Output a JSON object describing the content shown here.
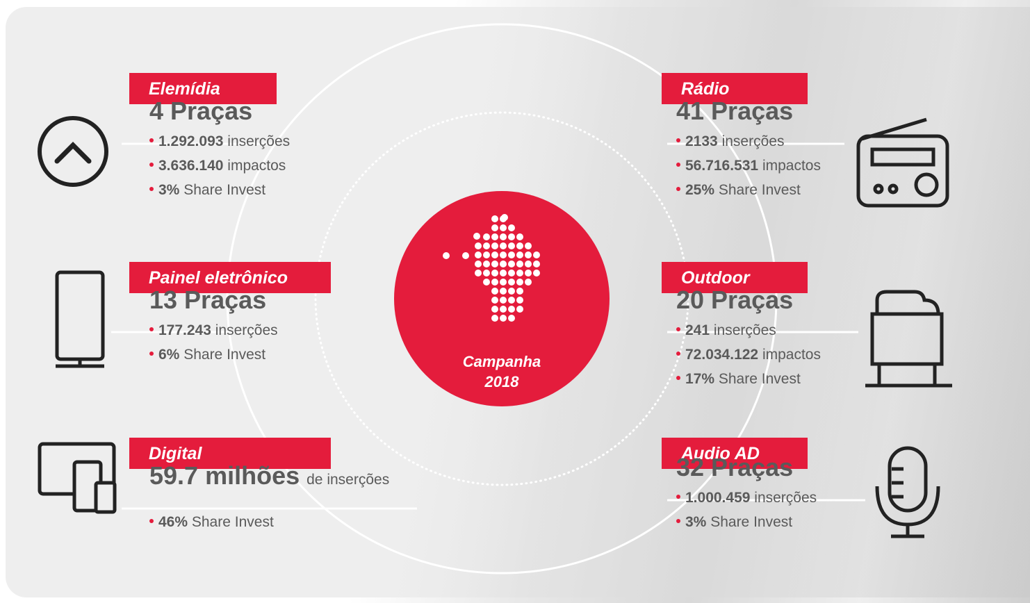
{
  "center": {
    "line1": "Campanha",
    "line2": "2018"
  },
  "media": [
    {
      "label": "Elemídia",
      "headline": "4 Praças",
      "items": [
        {
          "value": "1.292.093",
          "text": "inserções"
        },
        {
          "value": "3.636.140",
          "text": "impactos"
        },
        {
          "value": "3%",
          "text": "Share Invest"
        }
      ]
    },
    {
      "label": "Painel eletrônico",
      "headline": "13 Praças",
      "items": [
        {
          "value": "177.243",
          "text": "inserções"
        },
        {
          "value": "6%",
          "text": "Share Invest"
        }
      ]
    },
    {
      "label": "Digital",
      "headline": "59.7 milhões",
      "headline_suffix": "de inserções",
      "items": [
        {
          "value": "46%",
          "text": "Share Invest"
        }
      ]
    },
    {
      "label": "Rádio",
      "headline": "41 Praças",
      "items": [
        {
          "value": "2133",
          "text": "inserções"
        },
        {
          "value": "56.716.531",
          "text": "impactos"
        },
        {
          "value": "25%",
          "text": "Share Invest"
        }
      ]
    },
    {
      "label": "Outdoor",
      "headline": "20 Praças",
      "items": [
        {
          "value": "241",
          "text": "inserções"
        },
        {
          "value": "72.034.122",
          "text": "impactos"
        },
        {
          "value": "17%",
          "text": "Share Invest"
        }
      ]
    },
    {
      "label": "Audio AD",
      "headline": "32 Praças",
      "items": [
        {
          "value": "1.000.459",
          "text": "inserções"
        },
        {
          "value": "3%",
          "text": "Share Invest"
        }
      ]
    }
  ]
}
